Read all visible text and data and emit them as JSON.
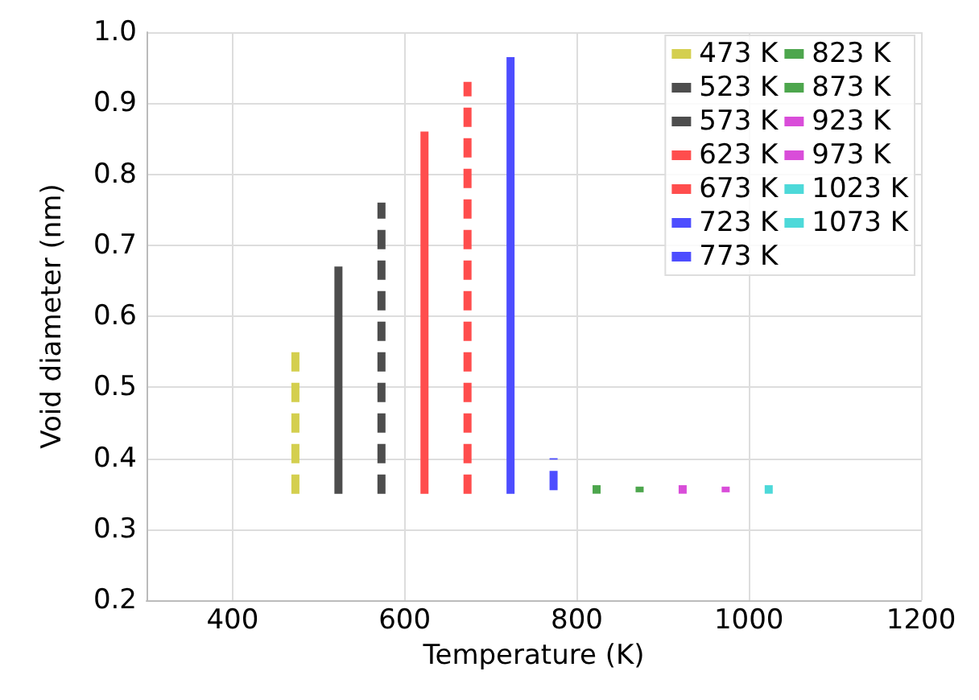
{
  "chart_data": {
    "type": "line",
    "xlabel": "Temperature (K)",
    "ylabel": "Void diameter (nm)",
    "xlim": [
      300,
      1200
    ],
    "xticks": [
      400,
      600,
      800,
      1000,
      1200
    ],
    "ylim": [
      0.2,
      1.0
    ],
    "yticks": [
      0.2,
      0.3,
      0.4,
      0.5,
      0.6,
      0.7,
      0.8,
      0.9,
      {
        "value": 1.0,
        "label": "1.0"
      }
    ],
    "grid": true,
    "legend": "top right",
    "marker": "none",
    "series": [
      {
        "name": "473 K",
        "color": "#d4cf4f",
        "x": [
          473,
          473
        ],
        "values": [
          0.35,
          0.56
        ],
        "line_style": "dashed"
      },
      {
        "name": "523 K",
        "color": "#4d4d4d",
        "x": [
          523,
          523
        ],
        "values": [
          0.35,
          0.67
        ],
        "line_style": "solid"
      },
      {
        "name": "573 K",
        "color": "#4d4d4d",
        "x": [
          573,
          573
        ],
        "values": [
          0.35,
          0.76
        ],
        "line_style": "dashed"
      },
      {
        "name": "623 K",
        "color": "#ff4d4d",
        "x": [
          623,
          623
        ],
        "values": [
          0.35,
          0.86
        ],
        "line_style": "solid"
      },
      {
        "name": "673 K",
        "color": "#ff4d4d",
        "x": [
          673,
          673
        ],
        "values": [
          0.35,
          0.93
        ],
        "line_style": "dashed"
      },
      {
        "name": "723 K",
        "color": "#4d4dff",
        "x": [
          723,
          723
        ],
        "values": [
          0.35,
          0.965
        ],
        "line_style": "solid"
      },
      {
        "name": "773 K",
        "color": "#4d4dff",
        "x": [
          773,
          773
        ],
        "values": [
          0.355,
          0.4
        ],
        "line_style": "dashed"
      },
      {
        "name": "823 K",
        "color": "#4da64d",
        "x": [
          823,
          823
        ],
        "values": [
          0.35,
          0.362
        ],
        "line_style": "solid"
      },
      {
        "name": "873 K",
        "color": "#4da64d",
        "x": [
          873,
          873
        ],
        "values": [
          0.352,
          0.36
        ],
        "line_style": "solid"
      },
      {
        "name": "923 K",
        "color": "#d94dd9",
        "x": [
          923,
          923
        ],
        "values": [
          0.35,
          0.362
        ],
        "line_style": "solid"
      },
      {
        "name": "973 K",
        "color": "#d94dd9",
        "x": [
          973,
          973
        ],
        "values": [
          0.352,
          0.36
        ],
        "line_style": "solid"
      },
      {
        "name": "1023 K",
        "color": "#4dd9d9",
        "x": [
          1023,
          1023
        ],
        "values": [
          0.35,
          0.362
        ],
        "line_style": "solid"
      },
      {
        "name": "1073 K",
        "color": "#4dd9d9",
        "line_style": "dashed"
      }
    ]
  }
}
